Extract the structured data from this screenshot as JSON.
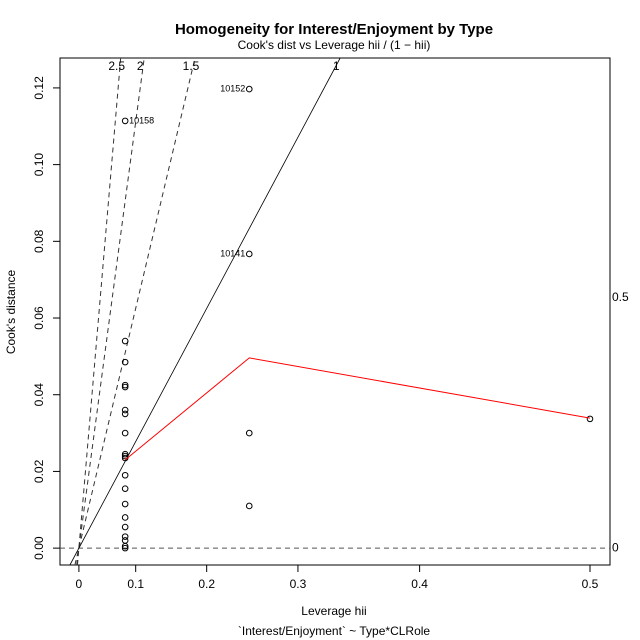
{
  "chart_data": {
    "type": "scatter",
    "title": "Homogeneity for Interest/Enjoyment by Type",
    "subtitle": "Cook's dist vs Leverage  hii / (1 − hii)",
    "x_label": "Leverage  hii",
    "x_sublabel": "`Interest/Enjoyment` ~ Type*CLRole",
    "y_label": "Cook's distance",
    "x_scale": "hii/(1-hii)",
    "xlim": [
      -0.0384,
      0.5096
    ],
    "xticks": [
      0,
      0.1,
      0.2,
      0.3,
      0.4,
      0.5
    ],
    "ylim": [
      -0.0044,
      0.1278
    ],
    "yticks": [
      {
        "value": 0,
        "label": "0.00"
      },
      0.02,
      0.04,
      0.06,
      0.08,
      {
        "value": 0.1,
        "label": "0.10"
      },
      0.12
    ],
    "series": [
      {
        "color": "#000000",
        "x": [
          0.083,
          0.083,
          0.083,
          0.083,
          0.083,
          0.083,
          0.083,
          0.083,
          0.083,
          0.083,
          0.083,
          0.083,
          0.083,
          0.083,
          0.083,
          0.083,
          0.083,
          0.083,
          0.083,
          0.083,
          0.25,
          0.25,
          0.25,
          0.25,
          0.5
        ],
        "values": [
          0.1114,
          0.054,
          0.0485,
          0.0425,
          0.042,
          0.036,
          0.035,
          0.03,
          0.0245,
          0.024,
          0.0235,
          0.019,
          0.0155,
          0.0115,
          0.008,
          0.0055,
          0.003,
          0.002,
          0.0005,
          0,
          0.1197,
          0.0767,
          0.03,
          0.011,
          0.0337
        ],
        "point_labels": [
          "10158",
          null,
          null,
          null,
          null,
          null,
          null,
          null,
          null,
          null,
          null,
          null,
          null,
          null,
          null,
          null,
          null,
          null,
          null,
          null,
          "10152",
          "10141",
          null,
          null,
          null
        ]
      },
      {
        "type": "line",
        "color": "#ff0000",
        "x": [
          0.083,
          0.25,
          0.5
        ],
        "values": [
          0.023,
          0.0496,
          0.0339
        ]
      }
    ],
    "contours": [
      2.5,
      2,
      1.5,
      1
    ],
    "right_labels": [
      0.5,
      0
    ]
  }
}
